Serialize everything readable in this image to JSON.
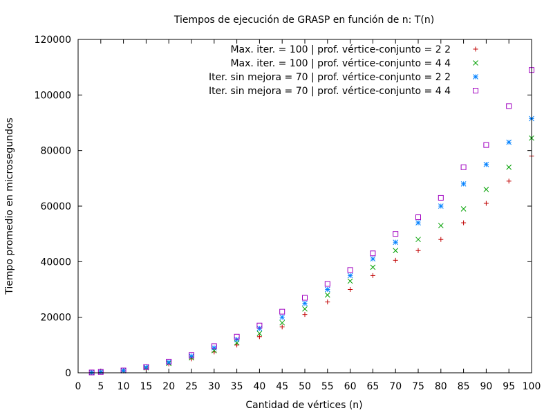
{
  "chart_data": {
    "type": "scatter",
    "title": "Tiempos de ejecución de GRASP en función de n: T(n)",
    "xlabel": "Cantidad de vértices (n)",
    "ylabel": "Tiempo promedio en microsegundos",
    "xlim": [
      0,
      100
    ],
    "ylim": [
      0,
      120000
    ],
    "xticks": [
      "0",
      "5",
      "10",
      "15",
      "20",
      "25",
      "30",
      "35",
      "40",
      "45",
      "50",
      "55",
      "60",
      "65",
      "70",
      "75",
      "80",
      "85",
      "90",
      "95",
      "100"
    ],
    "yticks": [
      "0",
      "20000",
      "40000",
      "60000",
      "80000",
      "100000",
      "120000"
    ],
    "grid": false,
    "legend_position": "top-right",
    "series": [
      {
        "name": "Max. iter. = 100 | prof. vértice-conjunto = 2 2",
        "color": "#c00000",
        "marker": "plus",
        "points": [
          [
            3,
            100
          ],
          [
            5,
            250
          ],
          [
            10,
            700
          ],
          [
            15,
            1700
          ],
          [
            20,
            3200
          ],
          [
            25,
            5000
          ],
          [
            30,
            7500
          ],
          [
            35,
            10000
          ],
          [
            40,
            13000
          ],
          [
            45,
            16500
          ],
          [
            50,
            21000
          ],
          [
            55,
            25500
          ],
          [
            60,
            30000
          ],
          [
            65,
            35000
          ],
          [
            70,
            40500
          ],
          [
            75,
            44000
          ],
          [
            80,
            48000
          ],
          [
            85,
            54000
          ],
          [
            90,
            61000
          ],
          [
            95,
            69000
          ],
          [
            100,
            78000
          ]
        ]
      },
      {
        "name": "Max. iter. = 100 | prof. vértice-conjunto = 4 4",
        "color": "#00a000",
        "marker": "cross",
        "points": [
          [
            3,
            110
          ],
          [
            5,
            270
          ],
          [
            10,
            750
          ],
          [
            15,
            1800
          ],
          [
            20,
            3400
          ],
          [
            25,
            5400
          ],
          [
            30,
            8000
          ],
          [
            35,
            10800
          ],
          [
            40,
            14200
          ],
          [
            45,
            18000
          ],
          [
            50,
            23000
          ],
          [
            55,
            28000
          ],
          [
            60,
            33000
          ],
          [
            65,
            38000
          ],
          [
            70,
            44000
          ],
          [
            75,
            48000
          ],
          [
            80,
            53000
          ],
          [
            85,
            59000
          ],
          [
            90,
            66000
          ],
          [
            95,
            74000
          ],
          [
            100,
            84500
          ]
        ]
      },
      {
        "name": "Iter. sin mejora = 70 | prof. vértice-conjunto = 2 2",
        "color": "#0080ff",
        "marker": "star",
        "points": [
          [
            3,
            120
          ],
          [
            5,
            300
          ],
          [
            10,
            800
          ],
          [
            15,
            2000
          ],
          [
            20,
            3800
          ],
          [
            25,
            6000
          ],
          [
            30,
            9000
          ],
          [
            35,
            12000
          ],
          [
            40,
            16000
          ],
          [
            45,
            20000
          ],
          [
            50,
            25000
          ],
          [
            55,
            30000
          ],
          [
            60,
            35000
          ],
          [
            65,
            41000
          ],
          [
            70,
            47000
          ],
          [
            75,
            54000
          ],
          [
            80,
            60000
          ],
          [
            85,
            68000
          ],
          [
            90,
            75000
          ],
          [
            95,
            83000
          ],
          [
            100,
            91500
          ]
        ]
      },
      {
        "name": "Iter. sin mejora = 70 | prof. vértice-conjunto = 4 4",
        "color": "#a000c0",
        "marker": "square",
        "points": [
          [
            3,
            130
          ],
          [
            5,
            320
          ],
          [
            10,
            850
          ],
          [
            15,
            2100
          ],
          [
            20,
            4000
          ],
          [
            25,
            6400
          ],
          [
            30,
            9600
          ],
          [
            35,
            13000
          ],
          [
            40,
            17000
          ],
          [
            45,
            22000
          ],
          [
            50,
            27000
          ],
          [
            55,
            32000
          ],
          [
            60,
            37000
          ],
          [
            65,
            43000
          ],
          [
            70,
            50000
          ],
          [
            75,
            56000
          ],
          [
            80,
            63000
          ],
          [
            85,
            74000
          ],
          [
            90,
            82000
          ],
          [
            95,
            96000
          ],
          [
            100,
            109000
          ]
        ]
      }
    ]
  }
}
